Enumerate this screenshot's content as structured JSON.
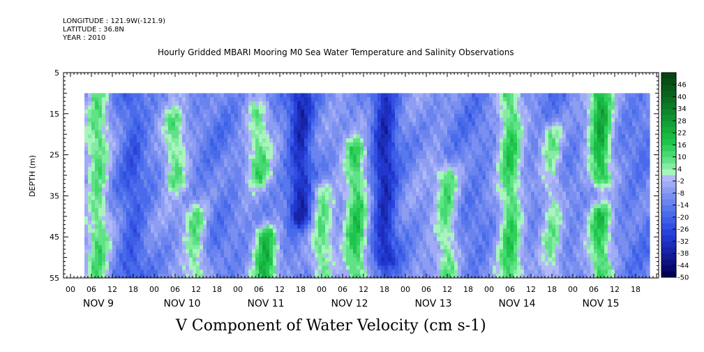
{
  "meta": {
    "longitude": "LONGITUDE : 121.9W(-121.9)",
    "latitude": "LATITUDE : 36.8N",
    "year": "YEAR : 2010"
  },
  "chart_data": {
    "type": "heatmap",
    "title": "Hourly Gridded MBARI Mooring M0 Sea Water Temperature and Salinity Observations",
    "xlabel": "V Component of Water Velocity (cm s-1)",
    "ylabel": "DEPTH (m)",
    "y_ticks": [
      "5",
      "15",
      "25",
      "35",
      "45",
      "55"
    ],
    "ylim": [
      5,
      55
    ],
    "y_inverted": true,
    "x_hour_labels": [
      "00",
      "06",
      "12",
      "18"
    ],
    "x_day_labels": [
      "NOV 9",
      "NOV 10",
      "NOV 11",
      "NOV 12",
      "NOV 13",
      "NOV 14",
      "NOV 15"
    ],
    "data_depth_range": [
      10,
      55
    ],
    "data_time_start": "NOV 9 04:00",
    "data_time_end": "NOV 15 22:00",
    "colorbar": {
      "tick_labels": [
        "46",
        "40",
        "34",
        "28",
        "22",
        "16",
        "10",
        "4",
        "-2",
        "-8",
        "-14",
        "-20",
        "-26",
        "-32",
        "-38",
        "-44",
        "-50"
      ],
      "range": [
        -50,
        52
      ],
      "level_step": 3
    },
    "field_structure": [
      {
        "day": "NOV 9",
        "hour": 8,
        "depth_range": [
          10,
          55
        ],
        "sign": "positive",
        "approx_value": 4
      },
      {
        "day": "NOV 9",
        "hour": 18,
        "depth_range": [
          10,
          55
        ],
        "sign": "negative",
        "approx_value": -20
      },
      {
        "day": "NOV 10",
        "hour": 6,
        "depth_range": [
          17,
          31
        ],
        "sign": "positive",
        "approx_value": 4
      },
      {
        "day": "NOV 10",
        "hour": 12,
        "depth_range": [
          40,
          55
        ],
        "sign": "positive",
        "approx_value": 5
      },
      {
        "day": "NOV 11",
        "hour": 6,
        "depth_range": [
          15,
          30
        ],
        "sign": "positive",
        "approx_value": 4
      },
      {
        "day": "NOV 11",
        "hour": 8,
        "depth_range": [
          45,
          55
        ],
        "sign": "positive",
        "approx_value": 14
      },
      {
        "day": "NOV 11",
        "hour": 18,
        "depth_range": [
          10,
          40
        ],
        "sign": "negative",
        "approx_value": -32
      },
      {
        "day": "NOV 12",
        "hour": 0,
        "depth_range": [
          34,
          55
        ],
        "sign": "positive",
        "approx_value": 5
      },
      {
        "day": "NOV 12",
        "hour": 10,
        "depth_range": [
          24,
          55
        ],
        "sign": "positive",
        "approx_value": 10
      },
      {
        "day": "NOV 12",
        "hour": 18,
        "depth_range": [
          10,
          50
        ],
        "sign": "negative",
        "approx_value": -32
      },
      {
        "day": "NOV 13",
        "hour": 12,
        "depth_range": [
          30,
          55
        ],
        "sign": "positive",
        "approx_value": 5
      },
      {
        "day": "NOV 14",
        "hour": 6,
        "depth_range": [
          10,
          55
        ],
        "sign": "positive",
        "approx_value": 8
      },
      {
        "day": "NOV 14",
        "hour": 18,
        "depth_range": [
          20,
          55
        ],
        "sign": "positive",
        "approx_value": 4
      },
      {
        "day": "NOV 15",
        "hour": 8,
        "depth_range": [
          10,
          30
        ],
        "sign": "positive",
        "approx_value": 16
      },
      {
        "day": "NOV 15",
        "hour": 8,
        "depth_range": [
          40,
          55
        ],
        "sign": "positive",
        "approx_value": 10
      }
    ],
    "colors": {
      "strong_negative": "#141c96",
      "negative": "#2850e0",
      "weak_negative": "#aab4f5",
      "weak_positive": "#a0f0b4",
      "positive": "#1ec846",
      "strong_positive": "#0a5a1e",
      "background": "#ffffff"
    }
  }
}
